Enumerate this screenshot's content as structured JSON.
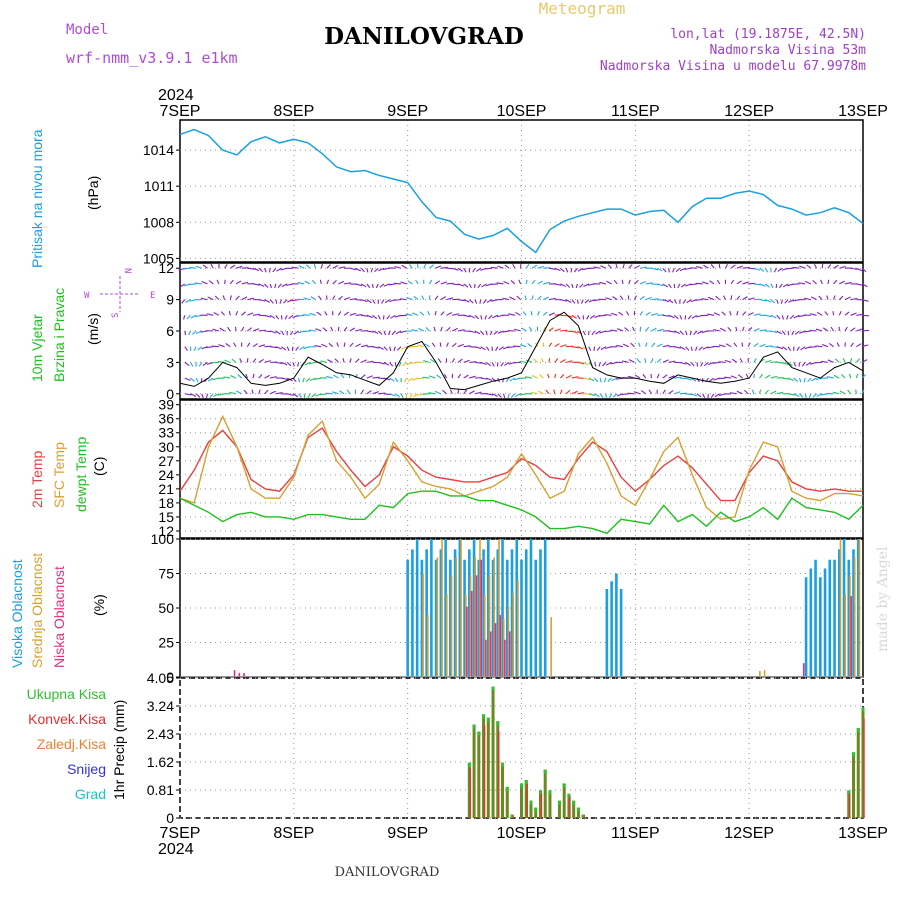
{
  "header": {
    "model_label": "Model",
    "model_name": "wrf-nmm_v3.9.1  e1km",
    "meteogram_label": "Meteogram",
    "station": "DANILOVGRAD",
    "lonlat": "lon,lat (19.1875E, 42.5N)",
    "altitude": "Nadmorska Visina 53m",
    "model_altitude": "Nadmorska Visina u modelu 67.9978m",
    "year": "2024",
    "footer_station": "DANILOVGRAD",
    "credit": "made by Angel"
  },
  "colors": {
    "title": "#000000",
    "model": "#b04ad8",
    "meteogram": "#e8c870",
    "info": "#a040c8",
    "pressure": "#1aa0e0",
    "temp2m": "#e84040",
    "sfc": "#d8a030",
    "dewpt": "#20c020",
    "high_cloud": "#1aa0e0",
    "mid_cloud": "#d8a030",
    "low_cloud": "#e03080",
    "precip_total": "#30c030",
    "precip_conv": "#e03030",
    "precip_strat": "#f08030",
    "snow": "#3030e0",
    "graupel": "#20c0c0",
    "wind_low": "#8020c0",
    "wind_mid": "#20a8e0",
    "wind_high": "#20c060",
    "wind_max": "#f03020"
  },
  "x_axis": {
    "days": [
      "7SEP",
      "8SEP",
      "9SEP",
      "10SEP",
      "11SEP",
      "12SEP",
      "13SEP"
    ]
  },
  "panels": {
    "pressure": {
      "label": "Pritisak na nivou mora",
      "unit": "(hPa)",
      "ticks": [
        "1014",
        "1011",
        "1008",
        "1005"
      ]
    },
    "wind": {
      "label_line1": "10m Vjetar",
      "label_line2": "Brzina i Pravac",
      "unit": "(m/s)",
      "ticks": [
        "12",
        "9",
        "6",
        "3",
        "0"
      ],
      "compass": {
        "n": "N",
        "s": "S",
        "w": "W",
        "e": "E"
      }
    },
    "temp": {
      "label_2m": "2m Temp",
      "label_sfc": "SFC Temp",
      "label_dew": "dewpt Temp",
      "unit": "(C)",
      "ticks": [
        "39",
        "36",
        "33",
        "30",
        "27",
        "24",
        "21",
        "18",
        "15",
        "12"
      ]
    },
    "cloud": {
      "label_high": "Visoka Oblacnost",
      "label_mid": "Srednja Oblacnost",
      "label_low": "Niska Oblacnost",
      "unit": "(%)",
      "ticks": [
        "100",
        "75",
        "50",
        "25",
        "0"
      ]
    },
    "precip": {
      "label_total": "Ukupna Kisa",
      "label_conv": "Konvek.Kisa",
      "label_strat": "Zaledj.Kisa",
      "label_snow": "Snijeg",
      "label_graupel": "Grad",
      "unit": "1hr Precip (mm)",
      "ticks": [
        "4.05",
        "3.24",
        "2.43",
        "1.62",
        "0.81",
        "0"
      ]
    }
  },
  "chart_data": [
    {
      "type": "line",
      "name": "pressure",
      "x": [
        0,
        3,
        6,
        9,
        12,
        15,
        18,
        21,
        24,
        27,
        30,
        33,
        36,
        39,
        42,
        45,
        48,
        51,
        54,
        57,
        60,
        63,
        66,
        69,
        72,
        75,
        78,
        81,
        84,
        87,
        90,
        93,
        96,
        99,
        102,
        105,
        108,
        111,
        114,
        117,
        120,
        123,
        126,
        129,
        132,
        135,
        138,
        141,
        144
      ],
      "y": [
        1015.3,
        1015.7,
        1015.2,
        1014.0,
        1013.6,
        1014.7,
        1015.1,
        1014.6,
        1014.9,
        1014.6,
        1013.7,
        1012.6,
        1012.2,
        1012.3,
        1011.9,
        1011.6,
        1011.3,
        1009.7,
        1008.4,
        1008.1,
        1007.0,
        1006.6,
        1006.9,
        1007.5,
        1006.4,
        1005.5,
        1007.4,
        1008.1,
        1008.5,
        1008.8,
        1009.1,
        1009.1,
        1008.6,
        1008.9,
        1009.0,
        1008.0,
        1009.3,
        1010.0,
        1010.0,
        1010.4,
        1010.6,
        1010.3,
        1009.4,
        1009.1,
        1008.6,
        1008.8,
        1009.2,
        1008.8,
        1007.9
      ],
      "ylim": [
        1004.7,
        1016.5
      ]
    },
    {
      "type": "line",
      "name": "wind_speed",
      "x": [
        0,
        3,
        6,
        9,
        12,
        15,
        18,
        21,
        24,
        27,
        30,
        33,
        36,
        39,
        42,
        45,
        48,
        51,
        54,
        57,
        60,
        63,
        66,
        69,
        72,
        75,
        78,
        81,
        84,
        87,
        90,
        93,
        96,
        99,
        102,
        105,
        108,
        111,
        114,
        117,
        120,
        123,
        126,
        129,
        132,
        135,
        138,
        141,
        144
      ],
      "y": [
        1.0,
        0.7,
        1.5,
        3.0,
        2.5,
        1.0,
        0.8,
        1.0,
        1.5,
        3.5,
        2.8,
        2.0,
        1.8,
        1.3,
        0.8,
        2.0,
        4.5,
        5.0,
        3.0,
        0.5,
        0.4,
        0.8,
        1.2,
        1.5,
        2.0,
        4.5,
        7.0,
        7.8,
        6.5,
        2.5,
        1.8,
        1.5,
        1.5,
        1.2,
        1.0,
        1.8,
        1.5,
        1.2,
        1.0,
        1.2,
        1.5,
        3.5,
        4.0,
        2.5,
        2.0,
        1.5,
        2.5,
        3.0,
        2.2
      ],
      "ylim": [
        -0.5,
        12.5
      ]
    },
    {
      "type": "line",
      "name": "temperature",
      "x": [
        0,
        3,
        6,
        9,
        12,
        15,
        18,
        21,
        24,
        27,
        30,
        33,
        36,
        39,
        42,
        45,
        48,
        51,
        54,
        57,
        60,
        63,
        66,
        69,
        72,
        75,
        78,
        81,
        84,
        87,
        90,
        93,
        96,
        99,
        102,
        105,
        108,
        111,
        114,
        117,
        120,
        123,
        126,
        129,
        132,
        135,
        138,
        141,
        144
      ],
      "series": [
        {
          "name": "2m Temp",
          "values": [
            20.5,
            25,
            31,
            33.5,
            30,
            23,
            21,
            20.5,
            24,
            32,
            34,
            29,
            25,
            21.5,
            24,
            30,
            28,
            25,
            23.5,
            23,
            22.5,
            22.5,
            23.5,
            24.5,
            27.5,
            26,
            23.5,
            23,
            27.5,
            31,
            29,
            23.5,
            20.5,
            23,
            26,
            28,
            25.5,
            22,
            18.5,
            18.5,
            24.5,
            28,
            27,
            22.5,
            21,
            20.5,
            21,
            20.5,
            20.5
          ]
        },
        {
          "name": "SFC Temp",
          "values": [
            19,
            18,
            30,
            36.5,
            30,
            21,
            19,
            19,
            23.5,
            32.5,
            35.5,
            27,
            23.5,
            19,
            22,
            31,
            27,
            22.5,
            21.5,
            21,
            19.5,
            20.5,
            21.5,
            23.5,
            28.5,
            24,
            19,
            20.5,
            28.5,
            32,
            26.5,
            19.5,
            17.5,
            23,
            29,
            32,
            24,
            17,
            14.5,
            15,
            25,
            31,
            30,
            20.5,
            19,
            18.5,
            20,
            20,
            19.5
          ]
        },
        {
          "name": "dewpt Temp",
          "values": [
            19,
            17.5,
            16,
            14,
            15.5,
            16,
            15,
            15,
            14.5,
            15.5,
            15.5,
            15,
            14.5,
            14.5,
            17.5,
            17,
            20,
            20.5,
            20.5,
            19.5,
            19.5,
            18.5,
            18.5,
            17.5,
            16.5,
            15,
            12.5,
            12.5,
            13,
            12.5,
            11.5,
            14.5,
            14,
            13.5,
            17.5,
            14,
            15.5,
            13,
            16,
            14,
            15,
            17,
            14.5,
            19,
            17,
            16.5,
            16,
            14.5,
            17.5
          ]
        }
      ],
      "ylim": [
        10.5,
        40
      ]
    },
    {
      "type": "bar",
      "name": "cloud_cover",
      "series": [
        {
          "name": "Visoka Oblacnost",
          "segments": [
            [
              48,
              56,
              100
            ],
            [
              56,
              72,
              100
            ],
            [
              72,
              78,
              100
            ],
            [
              90,
              94,
              75
            ],
            [
              132,
              138,
              85
            ],
            [
              138,
              144,
              100
            ]
          ]
        },
        {
          "name": "Srednja Oblacnost",
          "segments": [
            [
              51,
              53,
              75
            ],
            [
              54,
              68,
              100
            ],
            [
              68,
              72,
              70
            ],
            [
              78,
              79,
              50
            ],
            [
              122,
              124,
              5
            ],
            [
              139,
              144,
              100
            ]
          ]
        },
        {
          "name": "Niska Oblacnost",
          "segments": [
            [
              11,
              13,
              5
            ],
            [
              13,
              14,
              4
            ],
            [
              60,
              64,
              85
            ],
            [
              64,
              70,
              45
            ],
            [
              131,
              132,
              10
            ],
            [
              141,
              142,
              80
            ]
          ]
        }
      ],
      "ylim": [
        0,
        100
      ]
    },
    {
      "type": "bar",
      "name": "precipitation",
      "x": [
        61,
        62,
        63,
        64,
        65,
        66,
        67,
        68,
        69,
        70,
        71,
        72,
        73,
        74,
        75,
        76,
        77,
        78,
        79,
        80,
        81,
        82,
        83,
        84,
        85,
        86,
        87,
        141,
        142,
        143,
        144
      ],
      "values": [
        1.6,
        2.7,
        2.5,
        3.0,
        2.9,
        3.8,
        2.8,
        1.6,
        0.9,
        0.1,
        0.0,
        1.0,
        1.1,
        0.5,
        0.3,
        0.8,
        1.4,
        0.8,
        0.0,
        0.5,
        1.0,
        0.7,
        0.5,
        0.3,
        0.1,
        0.0,
        0.0,
        0.8,
        1.9,
        2.6,
        3.2
      ],
      "ylim": [
        0,
        4.05
      ]
    }
  ]
}
